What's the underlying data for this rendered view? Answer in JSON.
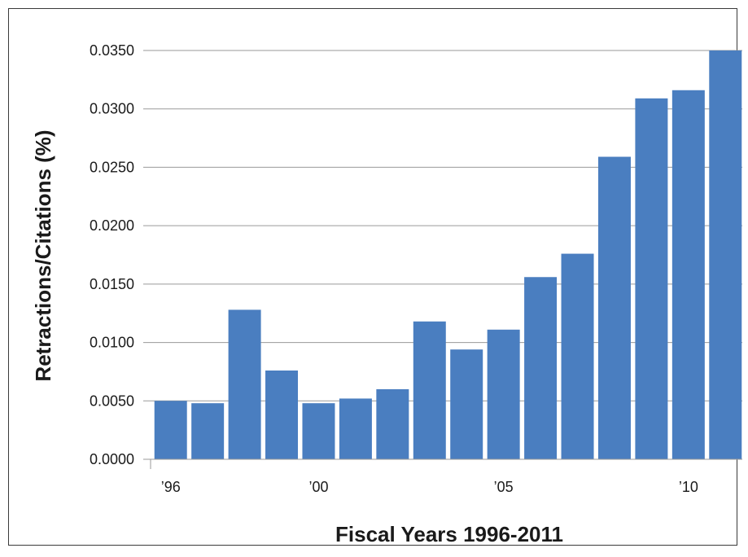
{
  "chart_data": {
    "type": "bar",
    "title": "",
    "xlabel": "Fiscal Years 1996-2011",
    "ylabel": "Retractions/Citations (%)",
    "categories": [
      "1996",
      "1997",
      "1998",
      "1999",
      "2000",
      "2001",
      "2002",
      "2003",
      "2004",
      "2005",
      "2006",
      "2007",
      "2008",
      "2009",
      "2010",
      "2011"
    ],
    "x_tick_labels": [
      {
        "category": "1996",
        "label": "’96"
      },
      {
        "category": "2000",
        "label": "’00"
      },
      {
        "category": "2005",
        "label": "’05"
      },
      {
        "category": "2010",
        "label": "’10"
      }
    ],
    "values": [
      0.005,
      0.0048,
      0.0128,
      0.0076,
      0.0048,
      0.0052,
      0.006,
      0.0118,
      0.0094,
      0.0111,
      0.0156,
      0.0176,
      0.0259,
      0.0309,
      0.0316,
      0.035
    ],
    "ylim": [
      0,
      0.035
    ],
    "y_ticks": [
      "0.0000",
      "0.0050",
      "0.0100",
      "0.0150",
      "0.0200",
      "0.0250",
      "0.0300",
      "0.0350"
    ],
    "grid": true,
    "color": "#4a7ec0",
    "legend": false
  }
}
